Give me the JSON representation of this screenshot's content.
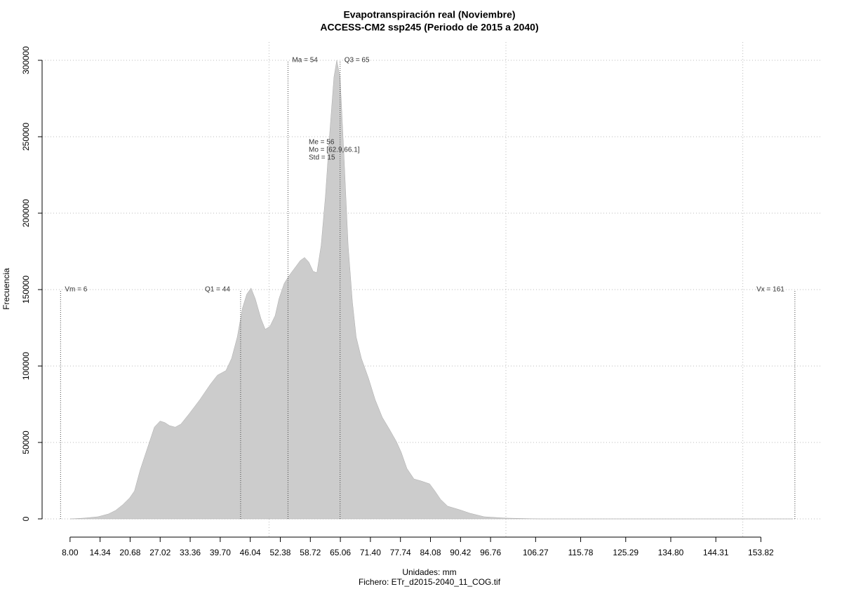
{
  "chart_data": {
    "type": "area",
    "title": "Evapotranspiración real (Noviembre)",
    "subtitle": "ACCESS-CM2 ssp245 (Periodo de 2015 a 2040)",
    "x_label": "Unidades: mm",
    "x_label_2": "Fichero: ETr_d2015-2040_11_COG.tif",
    "y_label": "Frecuencia",
    "color": "#cccccc",
    "grid": true,
    "xlim": [
      2.1,
      166.5
    ],
    "ylim": [
      0,
      300000
    ],
    "yticks": [
      0,
      50000,
      100000,
      150000,
      200000,
      250000,
      300000
    ],
    "xticks": [
      {
        "value": 8,
        "label": "8.00"
      },
      14.34,
      20.68,
      27.02,
      33.36,
      {
        "value": 39.7,
        "label": "39.70"
      },
      46.04,
      52.38,
      58.72,
      65.06,
      {
        "value": 71.4,
        "label": "71.40"
      },
      77.74,
      84.08,
      90.42,
      96.76,
      106.27,
      115.78,
      125.29,
      {
        "value": 134.8,
        "label": "134.80"
      },
      144.31,
      153.82
    ],
    "xgrid": [
      50,
      100,
      150
    ],
    "x": [
      8,
      11,
      13.9,
      16.1,
      17.6,
      19.1,
      20.6,
      21.6,
      22.8,
      24.3,
      25.8,
      27,
      28,
      29,
      30.2,
      31.4,
      33.2,
      35.4,
      37.6,
      39.1,
      40.9,
      42.1,
      43.3,
      44.4,
      45.3,
      46.2,
      47.1,
      48.3,
      49.2,
      50.2,
      51.3,
      52.1,
      53.2,
      54.2,
      55.4,
      56.6,
      57.5,
      58.4,
      59.3,
      60.1,
      61,
      61.9,
      62.8,
      63.7,
      64.3,
      65,
      65.8,
      66.7,
      67.6,
      68.4,
      69.5,
      71,
      72.4,
      73.9,
      75.4,
      76.9,
      77.9,
      79.1,
      80.6,
      82.1,
      83.9,
      85,
      86.2,
      87.7,
      90.2,
      92.4,
      95.4,
      99.9,
      107.3,
      160.6
    ],
    "values": [
      0,
      500,
      1400,
      3200,
      5500,
      9200,
      13800,
      18300,
      32000,
      46000,
      60000,
      64000,
      63000,
      61000,
      60000,
      62000,
      69000,
      78000,
      88000,
      94000,
      97000,
      105000,
      119000,
      138000,
      147000,
      151000,
      144000,
      131000,
      124000,
      126000,
      133000,
      144000,
      154000,
      159000,
      164000,
      169000,
      171000,
      168000,
      162000,
      161000,
      179000,
      211000,
      252000,
      289000,
      300000,
      289000,
      239000,
      179000,
      142000,
      119000,
      105000,
      92000,
      78000,
      66500,
      58700,
      50500,
      43600,
      33000,
      26100,
      24800,
      22900,
      18300,
      12800,
      8300,
      6000,
      3700,
      1400,
      500,
      0,
      0
    ],
    "markers": [
      {
        "label": "Vm = 6",
        "value": 6,
        "height": 150000,
        "side": "right"
      },
      {
        "label": "Q1 = 44",
        "value": 44,
        "height": 150000,
        "side": "left"
      },
      {
        "label": "Ma = 54",
        "value": 54,
        "height": 300000,
        "side": "right"
      },
      {
        "label": "Q3 = 65",
        "value": 65,
        "height": 300000,
        "side": "right"
      },
      {
        "label": "Vx = 161",
        "value": 161,
        "height": 150000,
        "side": "left"
      }
    ],
    "annotations": [
      "Me = 56",
      "Mo = [62.9,66.1]",
      "Std = 15"
    ]
  }
}
